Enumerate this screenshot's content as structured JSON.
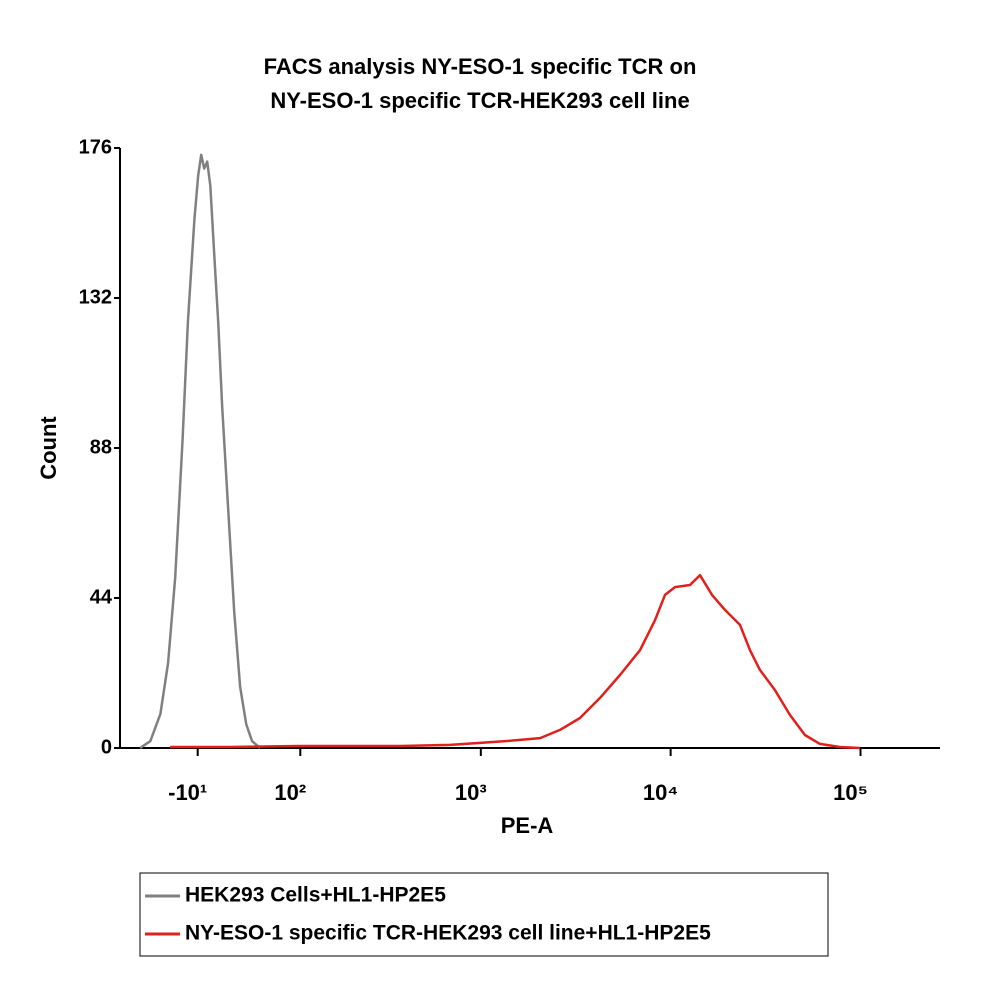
{
  "chart_data": {
    "type": "histogram-overlay",
    "title": [
      "FACS analysis NY-ESO-1 specific TCR on",
      "NY-ESO-1 specific TCR-HEK293 cell line"
    ],
    "xlabel": "PE-A",
    "ylabel": "Count",
    "xscale": "biexponential",
    "xlim": [
      -96,
      262144
    ],
    "xticks": [
      {
        "value": -10,
        "label": "-10¹"
      },
      {
        "value": 100,
        "label": "10²"
      },
      {
        "value": 1000,
        "label": "10³"
      },
      {
        "value": 10000,
        "label": "10⁴"
      },
      {
        "value": 100000,
        "label": "10⁵"
      }
    ],
    "ylim": [
      0,
      176
    ],
    "yticks": [
      0,
      44,
      88,
      132,
      176
    ],
    "series": [
      {
        "name": "HEK293 Cells+HL1-HP2E5",
        "color": "#808080",
        "x": [
          -69,
          -57,
          -46,
          -38,
          -31,
          -24,
          -19,
          -13,
          -9.5,
          -6.8,
          -4.1,
          -1.4,
          1.3,
          4.8,
          8.4,
          12.1,
          17.6,
          23.1,
          28.8,
          34.7,
          40.7,
          49.1
        ],
        "values": [
          0,
          2,
          10,
          25,
          50,
          90,
          125,
          155,
          168,
          174,
          170,
          172,
          165,
          145,
          125,
          100,
          70,
          40,
          18,
          7,
          2,
          0
        ]
      },
      {
        "name": "NY-ESO-1 specific TCR-HEK293 cell line+HL1-HP2E5",
        "color": "#e0201b",
        "x": [
          -36,
          19,
          100,
          199,
          373,
          688,
          992,
          1427,
          2054,
          2616,
          3334,
          4248,
          5413,
          6897,
          8277,
          9343,
          10541,
          12647,
          14275,
          16509,
          19329,
          23181,
          26170,
          29537,
          35416,
          42476,
          50949,
          61124,
          77848,
          99123
        ],
        "values": [
          0.3,
          0.3,
          0.6,
          0.6,
          0.6,
          0.9,
          1.5,
          2.1,
          2.9,
          5.3,
          8.8,
          14.7,
          21.4,
          28.7,
          37.5,
          44.9,
          47.2,
          47.8,
          50.7,
          44.9,
          40.5,
          36.1,
          28.7,
          22.9,
          17.0,
          9.7,
          3.8,
          1.2,
          0.3,
          0
        ]
      }
    ]
  }
}
